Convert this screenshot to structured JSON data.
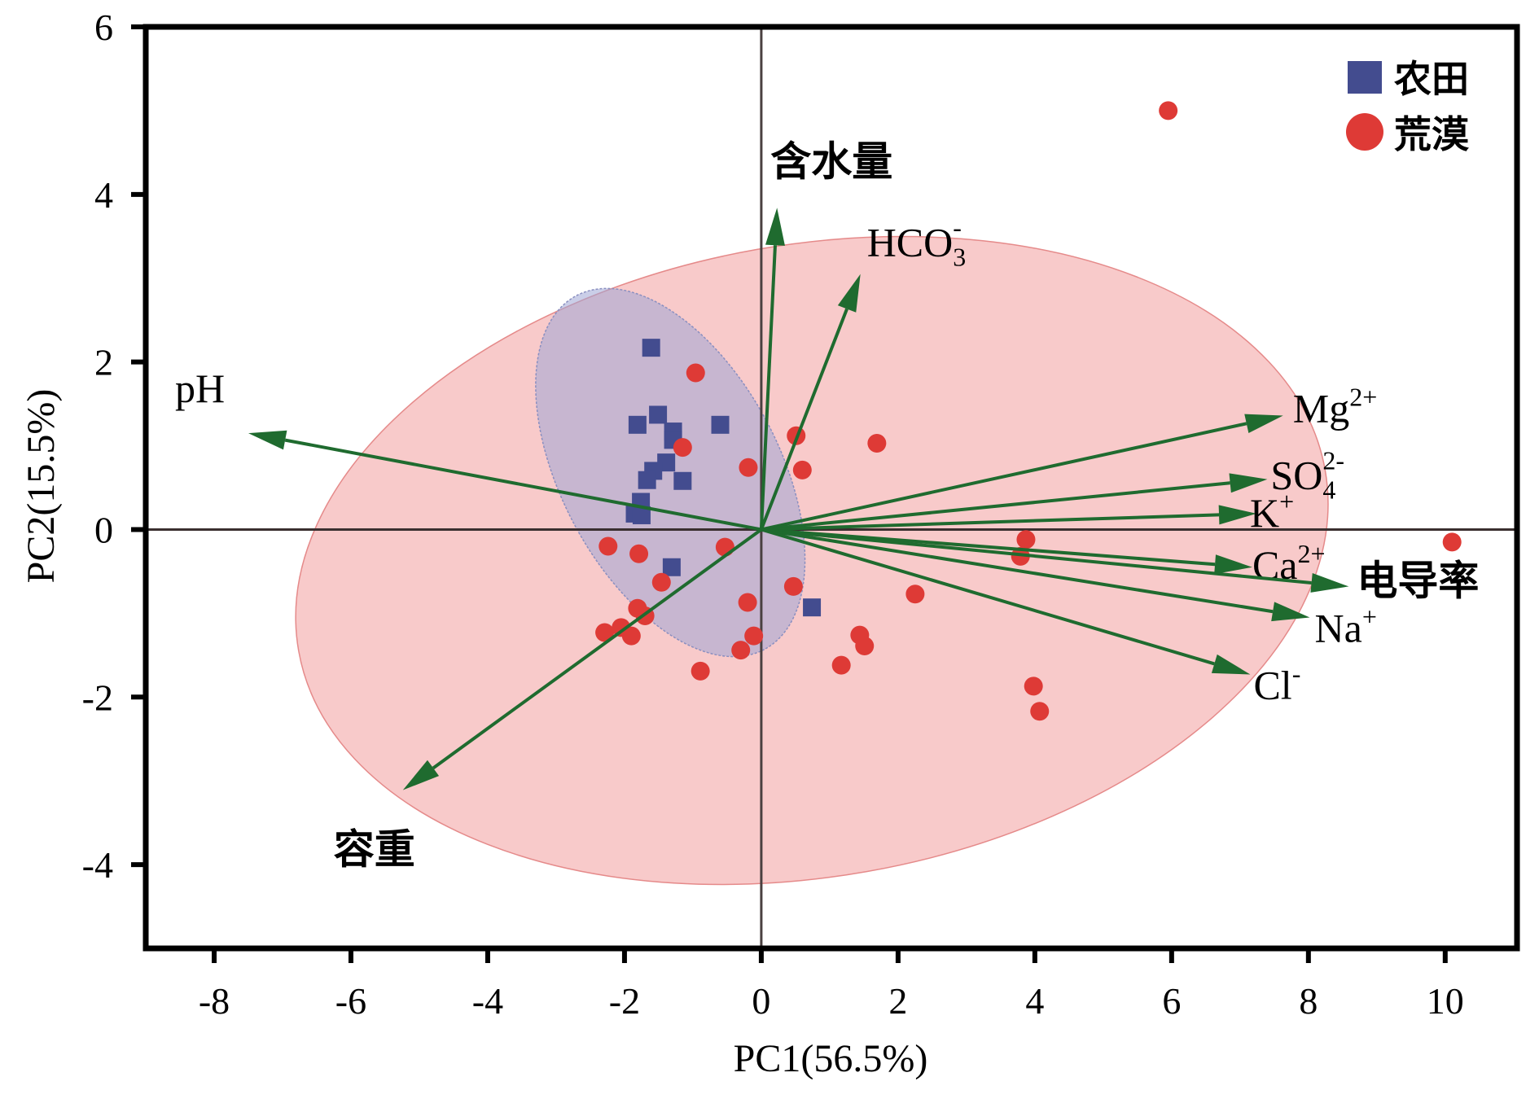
{
  "chart_data": {
    "type": "scatter",
    "subtype": "pca-biplot",
    "title": "",
    "xlabel": "PC1(56.5%)",
    "ylabel": "PC2(15.5%)",
    "xlim": [
      -9,
      11.05
    ],
    "ylim": [
      -5,
      6
    ],
    "xticks": [
      -8,
      -6,
      -4,
      -2,
      0,
      2,
      4,
      6,
      8,
      10
    ],
    "yticks": [
      -4,
      -2,
      0,
      2,
      4,
      6
    ],
    "xtick_labels": [
      "-8",
      "-6",
      "-4",
      "-2",
      "0",
      "2",
      "4",
      "6",
      "8",
      "10"
    ],
    "ytick_labels": [
      "-4",
      "-2",
      "0",
      "2",
      "4",
      "6"
    ],
    "grid": false,
    "reference_lines": {
      "x": 0,
      "y": 0
    },
    "legend": {
      "position": "top-right",
      "entries": [
        {
          "name": "农田",
          "marker": "square",
          "color": "#434c8f"
        },
        {
          "name": "荒漠",
          "marker": "circle",
          "color": "#de3a36"
        }
      ]
    },
    "series": [
      {
        "name": "农田",
        "marker": "square",
        "color": "#434c8f",
        "points": [
          [
            -1.61,
            2.17
          ],
          [
            -1.51,
            1.37
          ],
          [
            -1.81,
            1.25
          ],
          [
            -1.29,
            1.17
          ],
          [
            -1.29,
            1.07
          ],
          [
            -0.6,
            1.25
          ],
          [
            -1.39,
            0.8
          ],
          [
            -1.58,
            0.7
          ],
          [
            -1.67,
            0.59
          ],
          [
            -1.15,
            0.58
          ],
          [
            -1.76,
            0.33
          ],
          [
            -1.85,
            0.19
          ],
          [
            -1.75,
            0.17
          ],
          [
            -1.31,
            -0.45
          ],
          [
            0.74,
            -0.93
          ]
        ],
        "ellipse": {
          "cx": -1.33,
          "cy": 0.68,
          "fill": "#9fa6d6",
          "stroke": "#8a8fc0"
        }
      },
      {
        "name": "荒漠",
        "marker": "circle",
        "color": "#de3a36",
        "points": [
          [
            5.95,
            5.0
          ],
          [
            -0.96,
            1.87
          ],
          [
            -1.15,
            0.98
          ],
          [
            -0.19,
            0.74
          ],
          [
            0.51,
            1.12
          ],
          [
            0.6,
            0.71
          ],
          [
            1.69,
            1.03
          ],
          [
            -2.24,
            -0.2
          ],
          [
            -1.79,
            -0.29
          ],
          [
            -0.53,
            -0.21
          ],
          [
            -1.46,
            -0.63
          ],
          [
            0.47,
            -0.68
          ],
          [
            -1.81,
            -0.94
          ],
          [
            -1.7,
            -1.03
          ],
          [
            -2.29,
            -1.23
          ],
          [
            -2.05,
            -1.17
          ],
          [
            -1.9,
            -1.27
          ],
          [
            -0.2,
            -0.87
          ],
          [
            -0.11,
            -1.27
          ],
          [
            -0.3,
            -1.44
          ],
          [
            -0.89,
            -1.69
          ],
          [
            3.87,
            -0.12
          ],
          [
            3.79,
            -0.32
          ],
          [
            2.25,
            -0.77
          ],
          [
            1.44,
            -1.26
          ],
          [
            1.51,
            -1.39
          ],
          [
            1.17,
            -1.62
          ],
          [
            3.98,
            -1.87
          ],
          [
            4.07,
            -2.17
          ],
          [
            10.1,
            -0.15
          ]
        ],
        "ellipse": {
          "cx": 0.74,
          "cy": -0.37,
          "fill": "#f7c4c4",
          "stroke": "#e58a8a"
        }
      }
    ],
    "loadings": {
      "color": "#1f6b2f",
      "vectors": [
        {
          "name": "含水量",
          "base": "含水量",
          "sup": "",
          "sub": "",
          "x": 0.23,
          "y": 3.84,
          "cn": true
        },
        {
          "name": "HCO3-",
          "base": "HCO",
          "sup": "-",
          "sub": "3",
          "x": 1.45,
          "y": 3.05,
          "cn": false
        },
        {
          "name": "pH",
          "base": "pH",
          "sup": "",
          "sub": "",
          "x": -7.5,
          "y": 1.15,
          "cn": false
        },
        {
          "name": "Mg2+",
          "base": "Mg",
          "sup": "2+",
          "sub": "",
          "x": 7.63,
          "y": 1.36,
          "cn": false
        },
        {
          "name": "SO42-",
          "base": "SO",
          "sup": "2-",
          "sub": "4",
          "x": 7.4,
          "y": 0.6,
          "cn": false
        },
        {
          "name": "K+",
          "base": "K",
          "sup": "+",
          "sub": "",
          "x": 7.24,
          "y": 0.19,
          "cn": false
        },
        {
          "name": "Ca2+",
          "base": "Ca",
          "sup": "2+",
          "sub": "",
          "x": 7.18,
          "y": -0.45,
          "cn": false
        },
        {
          "name": "电导率",
          "base": "电导率",
          "sup": "",
          "sub": "",
          "x": 8.59,
          "y": -0.68,
          "cn": true
        },
        {
          "name": "Na+",
          "base": "Na",
          "sup": "+",
          "sub": "",
          "x": 8.02,
          "y": -1.05,
          "cn": false
        },
        {
          "name": "Cl-",
          "base": "Cl",
          "sup": "-",
          "sub": "",
          "x": 7.15,
          "y": -1.73,
          "cn": false
        },
        {
          "name": "容重",
          "base": "容重",
          "sup": "",
          "sub": "",
          "x": -5.24,
          "y": -3.11,
          "cn": true
        }
      ]
    }
  }
}
